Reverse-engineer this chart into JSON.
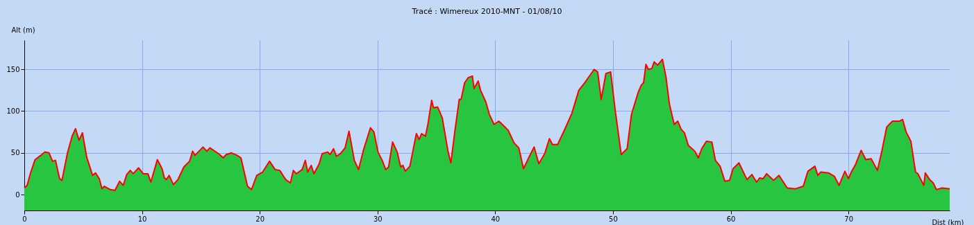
{
  "chart_data": {
    "type": "area",
    "title": "Tracé : Wimereux 2010-MNT - 01/08/10",
    "xlabel": "Dist (km)",
    "ylabel": "Alt (m)",
    "xlim": [
      0,
      78.6
    ],
    "ylim": [
      -19,
      185
    ],
    "xticks": [
      0,
      10,
      20,
      30,
      40,
      50,
      60,
      70
    ],
    "yticks": [
      0,
      50,
      100,
      150
    ],
    "grid": true,
    "bands": [
      {
        "axis": "y",
        "from": -19,
        "to": 0,
        "color": "#28c640"
      }
    ],
    "series": [
      {
        "color": "#28c640",
        "x": [
          0,
          0.24,
          0.53,
          0.92,
          1.4,
          1.75,
          2.1,
          2.4,
          2.65,
          3.0,
          3.2,
          3.67,
          4.06,
          4.35,
          4.65,
          4.94,
          5.3,
          5.8,
          6.05,
          6.37,
          6.6,
          6.8,
          7.3,
          7.7,
          8.1,
          8.4,
          8.7,
          9.0,
          9.25,
          9.7,
          10.1,
          10.5,
          10.75,
          11.3,
          11.7,
          11.9,
          12.07,
          12.3,
          12.66,
          13.05,
          13.55,
          14.04,
          14.3,
          14.5,
          15.18,
          15.5,
          15.77,
          16.5,
          16.9,
          17.15,
          17.6,
          18.07,
          18.4,
          18.96,
          19.3,
          19.74,
          20.24,
          20.83,
          21.3,
          21.7,
          22.2,
          22.6,
          22.85,
          23.1,
          23.6,
          23.87,
          24.07,
          24.37,
          24.6,
          25.05,
          25.3,
          25.77,
          25.97,
          26.27,
          26.5,
          26.85,
          27.25,
          27.58,
          28.03,
          28.39,
          28.8,
          29.4,
          29.7,
          30.04,
          30.4,
          30.7,
          30.94,
          31.28,
          31.67,
          31.97,
          32.16,
          32.36,
          32.75,
          33.3,
          33.54,
          33.74,
          34.07,
          34.29,
          34.6,
          34.76,
          35.1,
          35.5,
          36.0,
          36.23,
          36.59,
          36.94,
          37.1,
          37.4,
          37.7,
          38.06,
          38.2,
          38.55,
          38.75,
          39.2,
          39.5,
          39.9,
          40.3,
          40.6,
          41.1,
          41.6,
          42.0,
          42.4,
          42.84,
          43.3,
          43.7,
          44.2,
          44.6,
          44.86,
          45.3,
          45.9,
          46.5,
          47.1,
          47.55,
          47.9,
          48.4,
          48.7,
          49.0,
          49.4,
          49.8,
          50.2,
          50.7,
          51.2,
          51.57,
          52.13,
          52.4,
          52.6,
          52.8,
          53.0,
          53.3,
          53.5,
          53.8,
          54.2,
          54.5,
          54.8,
          55.2,
          55.5,
          55.8,
          56.07,
          56.4,
          56.95,
          57.25,
          57.54,
          57.94,
          58.4,
          58.7,
          59.1,
          59.5,
          59.9,
          60.2,
          60.7,
          61.38,
          61.8,
          62.2,
          62.46,
          62.75,
          63.05,
          63.64,
          64.1,
          64.8,
          65.5,
          66.16,
          66.56,
          67.15,
          67.4,
          67.64,
          68.3,
          68.8,
          69.2,
          69.7,
          70.0,
          70.24,
          70.6,
          71.08,
          71.47,
          71.93,
          72.46,
          72.85,
          73.25,
          73.74,
          74.33,
          74.6,
          74.9,
          75.3,
          75.7,
          75.9,
          76.4,
          76.53,
          76.9,
          77.2,
          77.47,
          77.96,
          78.6
        ],
        "values": [
          8,
          11,
          26,
          42,
          47,
          51,
          50,
          40,
          41,
          19,
          17,
          50,
          70,
          79,
          65,
          74,
          45,
          23,
          26,
          19,
          7,
          10,
          6,
          5,
          16,
          11,
          24,
          29,
          25,
          32,
          25,
          25,
          15,
          42,
          31,
          20,
          18,
          23,
          12,
          18,
          33,
          40,
          52,
          47,
          57,
          52,
          56,
          49,
          44,
          48,
          50,
          47,
          44,
          10,
          6,
          23,
          27,
          40,
          30,
          29,
          18,
          14,
          29,
          25,
          30,
          41,
          27,
          35,
          25,
          37,
          49,
          51,
          48,
          55,
          46,
          49,
          56,
          76,
          41,
          30,
          53,
          80,
          75,
          51,
          41,
          30,
          33,
          63,
          51,
          33,
          35,
          28,
          34,
          73,
          66,
          73,
          70,
          85,
          113,
          104,
          105,
          92,
          51,
          38,
          78,
          114,
          114,
          134,
          140,
          142,
          127,
          136,
          125,
          111,
          96,
          84,
          88,
          84,
          77,
          62,
          56,
          31,
          44,
          57,
          37,
          49,
          67,
          60,
          60,
          78,
          97,
          125,
          133,
          140,
          150,
          147,
          114,
          145,
          147,
          100,
          48,
          55,
          96,
          122,
          131,
          134,
          156,
          150,
          151,
          159,
          155,
          162,
          141,
          108,
          84,
          88,
          78,
          74,
          59,
          52,
          44,
          55,
          64,
          63,
          41,
          34,
          16,
          17,
          31,
          38,
          18,
          24,
          15,
          20,
          19,
          25,
          17,
          23,
          8,
          7,
          10,
          28,
          34,
          23,
          27,
          26,
          22,
          11,
          28,
          19,
          27,
          36,
          53,
          42,
          43,
          29,
          53,
          81,
          88,
          88,
          90,
          75,
          64,
          27,
          25,
          11,
          26,
          18,
          14,
          6,
          8,
          7
        ]
      },
      {
        "type": "line",
        "color": "#ff0000",
        "x": [
          0,
          0.24,
          0.53,
          0.92,
          1.4,
          1.75,
          2.1,
          2.4,
          2.65,
          3.0,
          3.2,
          3.67,
          4.06,
          4.35,
          4.65,
          4.94,
          5.3,
          5.8,
          6.05,
          6.37,
          6.6,
          6.8,
          7.3,
          7.7,
          8.1,
          8.4,
          8.7,
          9.0,
          9.25,
          9.7,
          10.1,
          10.5,
          10.75,
          11.3,
          11.7,
          11.9,
          12.07,
          12.3,
          12.66,
          13.05,
          13.55,
          14.04,
          14.3,
          14.5,
          15.18,
          15.5,
          15.77,
          16.5,
          16.9,
          17.15,
          17.6,
          18.07,
          18.4,
          18.96,
          19.3,
          19.74,
          20.24,
          20.83,
          21.3,
          21.7,
          22.2,
          22.6,
          22.85,
          23.1,
          23.6,
          23.87,
          24.07,
          24.37,
          24.6,
          25.05,
          25.3,
          25.77,
          25.97,
          26.27,
          26.5,
          26.85,
          27.25,
          27.58,
          28.03,
          28.39,
          28.8,
          29.4,
          29.7,
          30.04,
          30.4,
          30.7,
          30.94,
          31.28,
          31.67,
          31.97,
          32.16,
          32.36,
          32.75,
          33.3,
          33.54,
          33.74,
          34.07,
          34.29,
          34.6,
          34.76,
          35.1,
          35.5,
          36.0,
          36.23,
          36.59,
          36.94,
          37.1,
          37.4,
          37.7,
          38.06,
          38.2,
          38.55,
          38.75,
          39.2,
          39.5,
          39.9,
          40.3,
          40.6,
          41.1,
          41.6,
          42.0,
          42.4,
          42.84,
          43.3,
          43.7,
          44.2,
          44.6,
          44.86,
          45.3,
          45.9,
          46.5,
          47.1,
          47.55,
          47.9,
          48.4,
          48.7,
          49.0,
          49.4,
          49.8,
          50.2,
          50.7,
          51.2,
          51.57,
          52.13,
          52.4,
          52.6,
          52.8,
          53.0,
          53.3,
          53.5,
          53.8,
          54.2,
          54.5,
          54.8,
          55.2,
          55.5,
          55.8,
          56.07,
          56.4,
          56.95,
          57.25,
          57.54,
          57.94,
          58.4,
          58.7,
          59.1,
          59.5,
          59.9,
          60.2,
          60.7,
          61.38,
          61.8,
          62.2,
          62.46,
          62.75,
          63.05,
          63.64,
          64.1,
          64.8,
          65.5,
          66.16,
          66.56,
          67.15,
          67.4,
          67.64,
          68.3,
          68.8,
          69.2,
          69.7,
          70.0,
          70.24,
          70.6,
          71.08,
          71.47,
          71.93,
          72.46,
          72.85,
          73.25,
          73.74,
          74.33,
          74.6,
          74.9,
          75.3,
          75.7,
          75.9,
          76.4,
          76.53,
          76.9,
          77.2,
          77.47,
          77.96,
          78.6
        ],
        "values": [
          8,
          11,
          26,
          42,
          47,
          51,
          50,
          40,
          41,
          19,
          17,
          50,
          70,
          79,
          65,
          74,
          45,
          23,
          26,
          19,
          7,
          10,
          6,
          5,
          16,
          11,
          24,
          29,
          25,
          32,
          25,
          25,
          15,
          42,
          31,
          20,
          18,
          23,
          12,
          18,
          33,
          40,
          52,
          47,
          57,
          52,
          56,
          49,
          44,
          48,
          50,
          47,
          44,
          10,
          6,
          23,
          27,
          40,
          30,
          29,
          18,
          14,
          29,
          25,
          30,
          41,
          27,
          35,
          25,
          37,
          49,
          51,
          48,
          55,
          46,
          49,
          56,
          76,
          41,
          30,
          53,
          80,
          75,
          51,
          41,
          30,
          33,
          63,
          51,
          33,
          35,
          28,
          34,
          73,
          66,
          73,
          70,
          85,
          113,
          104,
          105,
          92,
          51,
          38,
          78,
          114,
          114,
          134,
          140,
          142,
          127,
          136,
          125,
          111,
          96,
          84,
          88,
          84,
          77,
          62,
          56,
          31,
          44,
          57,
          37,
          49,
          67,
          60,
          60,
          78,
          97,
          125,
          133,
          140,
          150,
          147,
          114,
          145,
          147,
          100,
          48,
          55,
          96,
          122,
          131,
          134,
          156,
          150,
          151,
          159,
          155,
          162,
          141,
          108,
          84,
          88,
          78,
          74,
          59,
          52,
          44,
          55,
          64,
          63,
          41,
          34,
          16,
          17,
          31,
          38,
          18,
          24,
          15,
          20,
          19,
          25,
          17,
          23,
          8,
          7,
          10,
          28,
          34,
          23,
          27,
          26,
          22,
          11,
          28,
          19,
          27,
          36,
          53,
          42,
          43,
          29,
          53,
          81,
          88,
          88,
          90,
          75,
          64,
          27,
          25,
          11,
          26,
          18,
          14,
          6,
          8,
          7
        ]
      }
    ]
  }
}
